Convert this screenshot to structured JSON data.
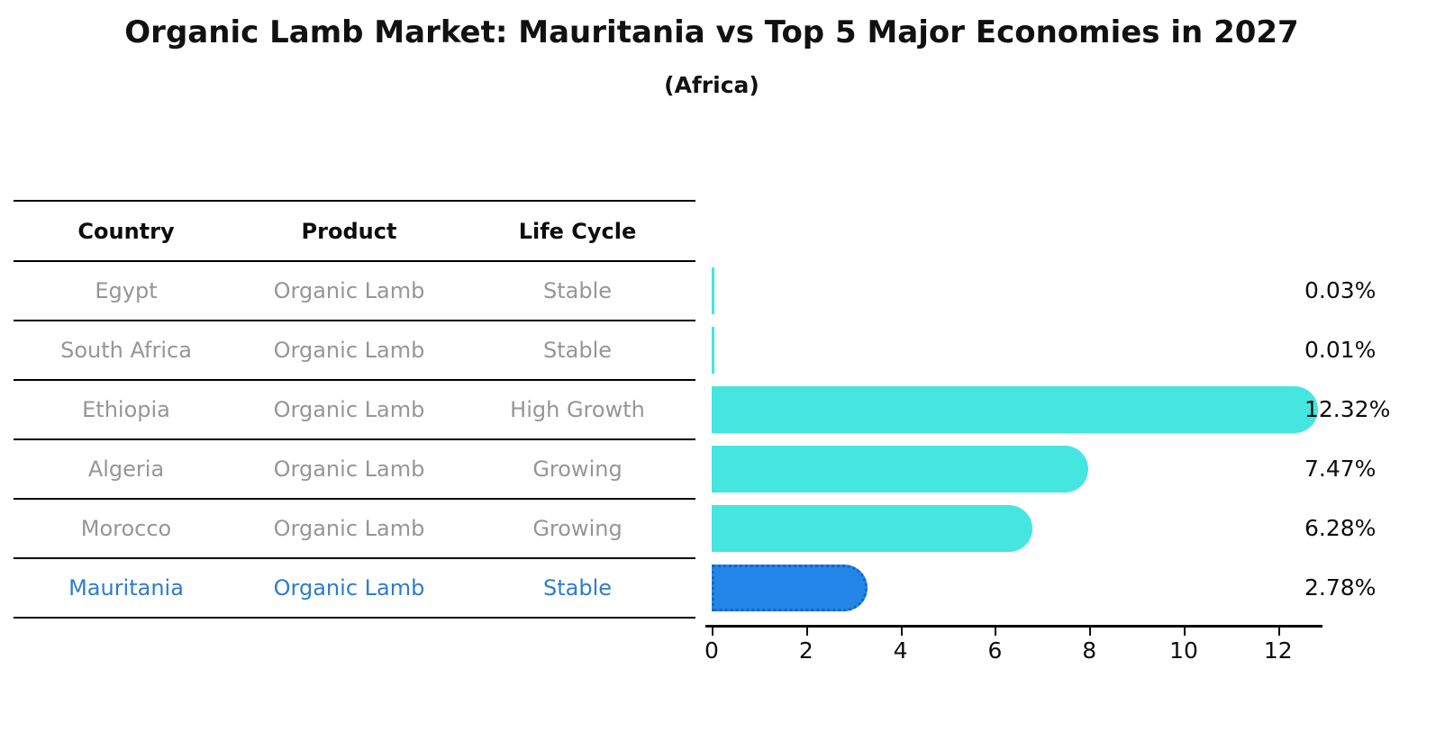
{
  "title": "Organic Lamb Market: Mauritania vs Top 5 Major Economies in 2027",
  "subtitle": "(Africa)",
  "table": {
    "headers": [
      "Country",
      "Product",
      "Life Cycle"
    ],
    "rows": [
      {
        "country": "Egypt",
        "product": "Organic Lamb",
        "life_cycle": "Stable"
      },
      {
        "country": "South Africa",
        "product": "Organic Lamb",
        "life_cycle": "Stable"
      },
      {
        "country": "Ethiopia",
        "product": "Organic Lamb",
        "life_cycle": "High Growth"
      },
      {
        "country": "Algeria",
        "product": "Organic Lamb",
        "life_cycle": "Growing"
      },
      {
        "country": "Morocco",
        "product": "Organic Lamb",
        "life_cycle": "Growing"
      },
      {
        "country": "Mauritania",
        "product": "Organic Lamb",
        "life_cycle": "Stable"
      }
    ]
  },
  "chart_data": {
    "type": "bar",
    "orientation": "horizontal",
    "title": "Organic Lamb Market: Mauritania vs Top 5 Major Economies in 2027",
    "subtitle": "(Africa)",
    "categories": [
      "Egypt",
      "South Africa",
      "Ethiopia",
      "Algeria",
      "Morocco",
      "Mauritania"
    ],
    "values": [
      0.03,
      0.01,
      12.32,
      7.47,
      6.28,
      2.78
    ],
    "value_labels": [
      "0.03%",
      "0.01%",
      "12.32%",
      "7.47%",
      "6.28%",
      "2.78%"
    ],
    "highlight_index": 5,
    "x_ticks": [
      0,
      2,
      4,
      6,
      8,
      10,
      12
    ],
    "xlim": [
      0,
      13.3
    ],
    "grid": false,
    "legend": false,
    "xlabel": "",
    "ylabel": ""
  },
  "colors": {
    "bar": "#45e6e0",
    "highlight_bar": "#2385e8",
    "highlight_border": "#1566cf",
    "highlight_text": "#2e7dc9",
    "row_text": "#969696",
    "axis": "#0d0d0d"
  }
}
